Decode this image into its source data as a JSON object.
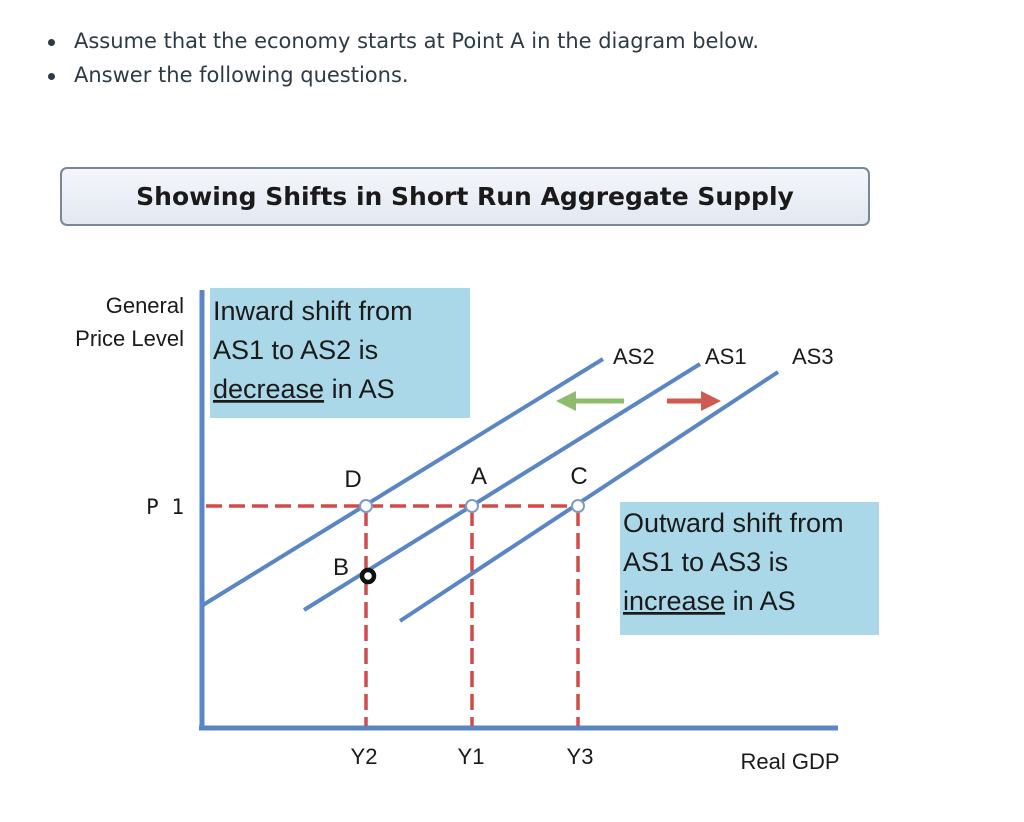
{
  "instructions": [
    "Assume that the economy starts at Point A in the diagram below.",
    "Answer the following questions."
  ],
  "diagram": {
    "title": "Showing Shifts in Short Run Aggregate Supply",
    "y_axis_label": [
      "General",
      "Price Level"
    ],
    "x_axis_label": "Real GDP",
    "price_label": "P 1",
    "quantity_labels": [
      "Y2",
      "Y1",
      "Y3"
    ],
    "curve_labels": [
      "AS2",
      "AS1",
      "AS3"
    ],
    "point_labels": [
      "D",
      "A",
      "C",
      "B"
    ],
    "inward_box": {
      "line1": "Inward shift from",
      "line2": "AS1 to AS2 is",
      "keyword": "decrease",
      "rest": " in AS"
    },
    "outward_box": {
      "line1": "Outward shift from",
      "line2": "AS1 to AS3 is",
      "keyword": "increase",
      "rest": " in AS"
    },
    "colors": {
      "axis": "#5b86c5",
      "curve": "#5b86c5",
      "dashed": "#d24b4b",
      "box_fill": "#aad8e8",
      "inward_arrow": "#8fbb6e",
      "outward_arrow": "#cf5a52"
    }
  }
}
